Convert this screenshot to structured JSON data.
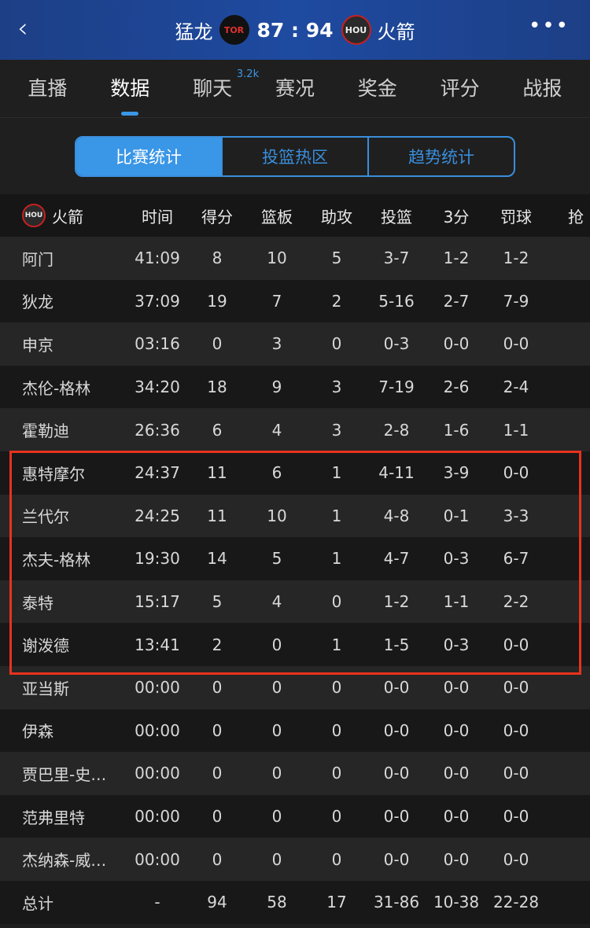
{
  "header": {
    "home_team": "猛龙",
    "home_abbr": "TOR",
    "score": "87 : 94",
    "away_abbr": "HOU",
    "away_team": "火箭",
    "back_icon": "chevron-left-icon",
    "more_icon": "more-dots-icon"
  },
  "tabs": [
    {
      "label": "直播"
    },
    {
      "label": "数据",
      "active": true
    },
    {
      "label": "聊天",
      "badge": "3.2k"
    },
    {
      "label": "赛况"
    },
    {
      "label": "奖金"
    },
    {
      "label": "评分"
    },
    {
      "label": "战报"
    }
  ],
  "segments": [
    "比赛统计",
    "投篮热区",
    "趋势统计"
  ],
  "table": {
    "team": "火箭",
    "team_abbr": "HOU",
    "columns": [
      "时间",
      "得分",
      "篮板",
      "助攻",
      "投篮",
      "3分",
      "罚球",
      "抢"
    ],
    "rows": [
      [
        "阿门",
        "41:09",
        "8",
        "10",
        "5",
        "3-7",
        "1-2",
        "1-2"
      ],
      [
        "狄龙",
        "37:09",
        "19",
        "7",
        "2",
        "5-16",
        "2-7",
        "7-9"
      ],
      [
        "申京",
        "03:16",
        "0",
        "3",
        "0",
        "0-3",
        "0-0",
        "0-0"
      ],
      [
        "杰伦-格林",
        "34:20",
        "18",
        "9",
        "3",
        "7-19",
        "2-6",
        "2-4"
      ],
      [
        "霍勒迪",
        "26:36",
        "6",
        "4",
        "3",
        "2-8",
        "1-6",
        "1-1"
      ],
      [
        "惠特摩尔",
        "24:37",
        "11",
        "6",
        "1",
        "4-11",
        "3-9",
        "0-0"
      ],
      [
        "兰代尔",
        "24:25",
        "11",
        "10",
        "1",
        "4-8",
        "0-1",
        "3-3"
      ],
      [
        "杰夫-格林",
        "19:30",
        "14",
        "5",
        "1",
        "4-7",
        "0-3",
        "6-7"
      ],
      [
        "泰特",
        "15:17",
        "5",
        "4",
        "0",
        "1-2",
        "1-1",
        "2-2"
      ],
      [
        "谢泼德",
        "13:41",
        "2",
        "0",
        "1",
        "1-5",
        "0-3",
        "0-0"
      ],
      [
        "亚当斯",
        "00:00",
        "0",
        "0",
        "0",
        "0-0",
        "0-0",
        "0-0"
      ],
      [
        "伊森",
        "00:00",
        "0",
        "0",
        "0",
        "0-0",
        "0-0",
        "0-0"
      ],
      [
        "贾巴里-史…",
        "00:00",
        "0",
        "0",
        "0",
        "0-0",
        "0-0",
        "0-0"
      ],
      [
        "范弗里特",
        "00:00",
        "0",
        "0",
        "0",
        "0-0",
        "0-0",
        "0-0"
      ],
      [
        "杰纳森-威…",
        "00:00",
        "0",
        "0",
        "0",
        "0-0",
        "0-0",
        "0-0"
      ],
      [
        "总计",
        "-",
        "94",
        "58",
        "17",
        "31-86",
        "10-38",
        "22-28"
      ]
    ]
  },
  "colors": {
    "accent": "#3a96e6",
    "highlight_box": "#e8321e",
    "header_bg": "#1e4aa0"
  }
}
